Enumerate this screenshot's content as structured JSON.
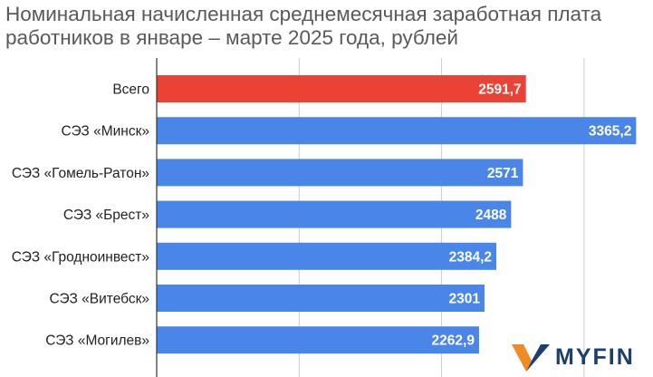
{
  "chart_data": {
    "type": "bar",
    "orientation": "horizontal",
    "title": "Номинальная начисленная среднемесячная заработная плата работников в январе – марте 2025 года, рублей",
    "categories": [
      "Всего",
      "СЭЗ «Минск»",
      "СЭЗ «Гомель-Ратон»",
      "СЭЗ «Брест»",
      "СЭЗ «Гродноинвест»",
      "СЭЗ «Витебск»",
      "СЭЗ «Могилев»"
    ],
    "values": [
      2591.7,
      3365.2,
      2571,
      2488,
      2384.2,
      2301,
      2262.9
    ],
    "value_labels": [
      "2591,7",
      "3365,2",
      "2571",
      "2488",
      "2384,2",
      "2301",
      "2262,9"
    ],
    "xlim": [
      0,
      3500
    ],
    "grid": true,
    "legend": "none",
    "colors": {
      "highlight": "#ea4335",
      "default": "#4a86e8",
      "grid": "#cccccc",
      "axis": "#333333",
      "label": "#222222",
      "value_text": "#ffffff"
    },
    "highlight_index": 0
  },
  "logo": {
    "text": "MYFIN",
    "icon": "myfin-check-icon",
    "colors": {
      "check": "#f08a24",
      "check_dark": "#1c3f70",
      "text": "#1c3f70"
    }
  }
}
